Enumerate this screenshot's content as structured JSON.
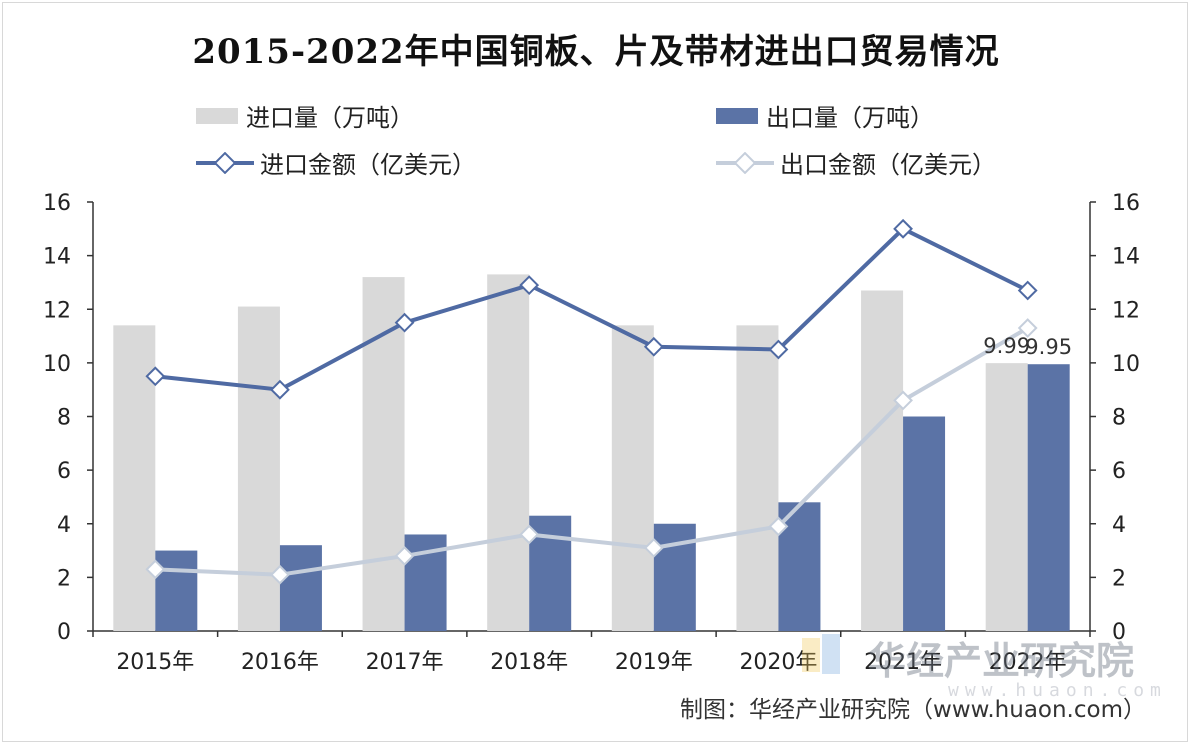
{
  "title": "2015-2022年中国铜板、片及带材进出口贸易情况",
  "legend": {
    "import_volume": "进口量（万吨）",
    "export_volume": "出口量（万吨）",
    "import_value": "进口金额（亿美元）",
    "export_value": "出口金额（亿美元）"
  },
  "footer": "制图：华经产业研究院（www.huaon.com）",
  "watermark": {
    "text": "华经产业研究院",
    "url": "www.huaon.com"
  },
  "colors": {
    "import_volume": "#d9d9d9",
    "export_volume": "#5b73a6",
    "import_value": "#4f6aa3",
    "export_value": "#c5cedb"
  },
  "chart_data": {
    "type": "bar",
    "title": "2015-2022年中国铜板、片及带材进出口贸易情况",
    "categories": [
      "2015年",
      "2016年",
      "2017年",
      "2018年",
      "2019年",
      "2020年",
      "2021年",
      "2022年"
    ],
    "series": [
      {
        "name": "进口量（万吨）",
        "type": "bar",
        "values": [
          11.4,
          12.1,
          13.2,
          13.3,
          11.4,
          11.4,
          12.7,
          9.99
        ]
      },
      {
        "name": "出口量（万吨）",
        "type": "bar",
        "values": [
          3.0,
          3.2,
          3.6,
          4.3,
          4.0,
          4.8,
          8.0,
          9.95
        ]
      },
      {
        "name": "进口金额（亿美元）",
        "type": "line",
        "values": [
          9.5,
          9.0,
          11.5,
          12.9,
          10.6,
          10.5,
          15.0,
          12.7
        ]
      },
      {
        "name": "出口金额（亿美元）",
        "type": "line",
        "values": [
          2.3,
          2.1,
          2.8,
          3.6,
          3.1,
          3.9,
          8.6,
          11.3
        ]
      }
    ],
    "data_labels": [
      {
        "series": "进口量（万吨）",
        "category": "2022年",
        "text": "9.99"
      },
      {
        "series": "出口量（万吨）",
        "category": "2022年",
        "text": "9.95"
      }
    ],
    "ylim": [
      0,
      16
    ],
    "y_ticks": [
      "0",
      "2",
      "4",
      "6",
      "8",
      "10",
      "12",
      "14",
      "16"
    ],
    "y2lim": [
      0,
      16
    ],
    "y2_ticks": [
      "0",
      "2",
      "4",
      "6",
      "8",
      "10",
      "12",
      "14",
      "16"
    ],
    "xlabel": "",
    "ylabel": "",
    "grid": false,
    "legend_position": "top"
  }
}
